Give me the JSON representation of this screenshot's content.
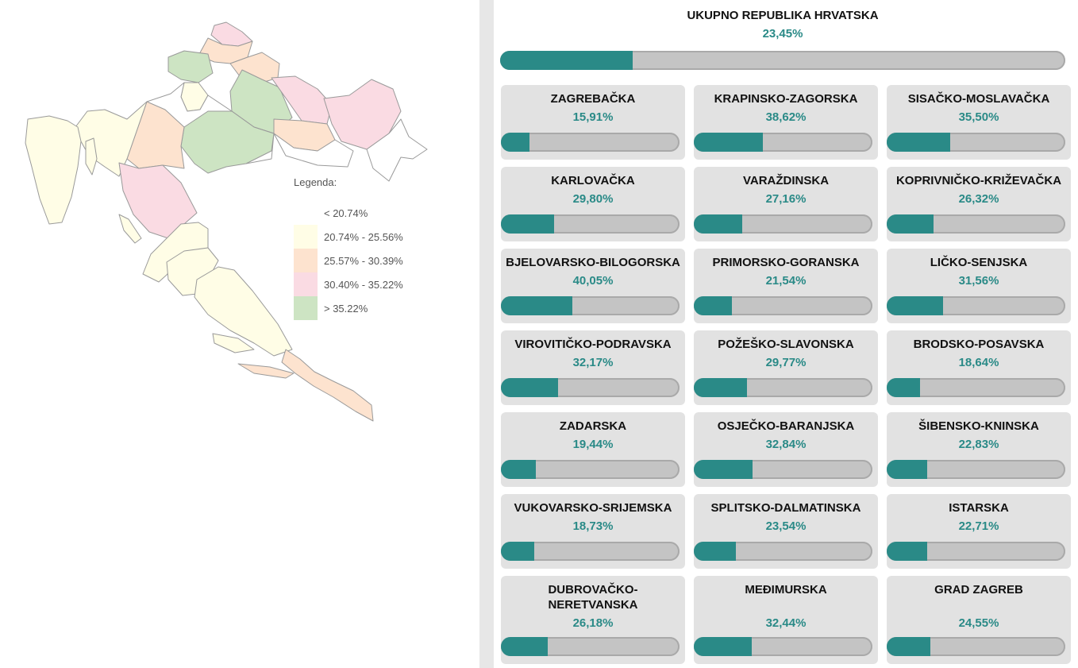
{
  "legend": {
    "title": "Legenda:",
    "items": [
      {
        "label": "< 20.74%",
        "color": "#ffffff"
      },
      {
        "label": "20.74% - 25.56%",
        "color": "#fffde6"
      },
      {
        "label": "25.57% - 30.39%",
        "color": "#fde3cf"
      },
      {
        "label": "30.40% - 35.22%",
        "color": "#fadbe3"
      },
      {
        "label": "> 35.22%",
        "color": "#cde4c3"
      }
    ]
  },
  "colors": {
    "accent": "#2a8a87",
    "bar_bg": "#c4c4c4",
    "card_bg": "#e2e2e2"
  },
  "total": {
    "name": "UKUPNO REPUBLIKA HRVATSKA",
    "percent_label": "23,45%",
    "value": 23.45
  },
  "counties": [
    {
      "name": "ZAGREBAČKA",
      "percent_label": "15,91%",
      "value": 15.91
    },
    {
      "name": "KRAPINSKO-ZAGORSKA",
      "percent_label": "38,62%",
      "value": 38.62
    },
    {
      "name": "SISAČKO-MOSLAVAČKA",
      "percent_label": "35,50%",
      "value": 35.5
    },
    {
      "name": "KARLOVAČKA",
      "percent_label": "29,80%",
      "value": 29.8
    },
    {
      "name": "VARAŽDINSKA",
      "percent_label": "27,16%",
      "value": 27.16
    },
    {
      "name": "KOPRIVNIČKO-KRIŽEVAČKA",
      "percent_label": "26,32%",
      "value": 26.32
    },
    {
      "name": "BJELOVARSKO-BILOGORSKA",
      "percent_label": "40,05%",
      "value": 40.05
    },
    {
      "name": "PRIMORSKO-GORANSKA",
      "percent_label": "21,54%",
      "value": 21.54
    },
    {
      "name": "LIČKO-SENJSKA",
      "percent_label": "31,56%",
      "value": 31.56
    },
    {
      "name": "VIROVITIČKO-PODRAVSKA",
      "percent_label": "32,17%",
      "value": 32.17
    },
    {
      "name": "POŽEŠKO-SLAVONSKA",
      "percent_label": "29,77%",
      "value": 29.77
    },
    {
      "name": "BRODSKO-POSAVSKA",
      "percent_label": "18,64%",
      "value": 18.64
    },
    {
      "name": "ZADARSKA",
      "percent_label": "19,44%",
      "value": 19.44
    },
    {
      "name": "OSJEČKO-BARANJSKA",
      "percent_label": "32,84%",
      "value": 32.84
    },
    {
      "name": "ŠIBENSKO-KNINSKA",
      "percent_label": "22,83%",
      "value": 22.83
    },
    {
      "name": "VUKOVARSKO-SRIJEMSKA",
      "percent_label": "18,73%",
      "value": 18.73
    },
    {
      "name": "SPLITSKO-DALMATINSKA",
      "percent_label": "23,54%",
      "value": 23.54
    },
    {
      "name": "ISTARSKA",
      "percent_label": "22,71%",
      "value": 22.71
    },
    {
      "name": "DUBROVAČKO-NERETVANSKA",
      "percent_label": "26,18%",
      "value": 26.18
    },
    {
      "name": "MEĐIMURSKA",
      "percent_label": "32,44%",
      "value": 32.44
    },
    {
      "name": "GRAD ZAGREB",
      "percent_label": "24,55%",
      "value": 24.55
    }
  ]
}
